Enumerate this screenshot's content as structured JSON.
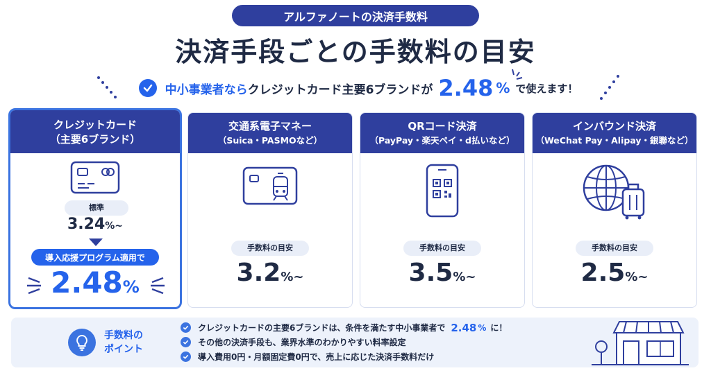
{
  "header": {
    "pill": "アルファノートの決済手数料",
    "title": "決済手段ごとの手数料の目安",
    "sub_a": "中小事業者なら",
    "sub_b": "クレジットカード主要6ブランドが",
    "sub_rate": "2.48",
    "sub_pct": "%",
    "sub_end": "で使えます！"
  },
  "cards": [
    {
      "title": "クレジットカード",
      "subtitle": "（主要6ブランド）",
      "icon": "credit-card-icon",
      "standard_label": "標準",
      "standard_rate": "3.24",
      "standard_unit": "%~",
      "program_label": "導入応援プログラム適用で",
      "program_rate": "2.48",
      "program_unit": "%"
    },
    {
      "title": "交通系電子マネー",
      "subtitle": "（Suica・PASMOなど）",
      "icon": "transit-card-icon",
      "label": "手数料の目安",
      "rate": "3.2",
      "unit": "%~"
    },
    {
      "title": "QRコード決済",
      "subtitle": "（PayPay・楽天ペイ・d払いなど）",
      "icon": "qr-phone-icon",
      "label": "手数料の目安",
      "rate": "3.5",
      "unit": "%~"
    },
    {
      "title": "インバウンド決済",
      "subtitle": "（WeChat Pay・Alipay・銀聯など）",
      "icon": "globe-luggage-icon",
      "label": "手数料の目安",
      "rate": "2.5",
      "unit": "%~"
    }
  ],
  "points": {
    "title_1": "手数料の",
    "title_2": "ポイント",
    "icon": "lightbulb-icon",
    "items": [
      {
        "text": "クレジットカードの主要6ブランドは、条件を満たす中小事業者で",
        "hl": "2.48",
        "hl_unit": "%",
        "tail": "に！"
      },
      {
        "text": "その他の決済手段も、業界水準のわかりやすい料率設定"
      },
      {
        "text": "導入費用0円・月額固定費0円で、売上に応じた決済手数料だけ"
      }
    ],
    "illustration": "storefront-icon"
  },
  "colors": {
    "navy": "#2f3f9e",
    "accent_blue": "#2563eb",
    "text_dark": "#1f2a44",
    "panel_bg": "#edf2fb"
  }
}
